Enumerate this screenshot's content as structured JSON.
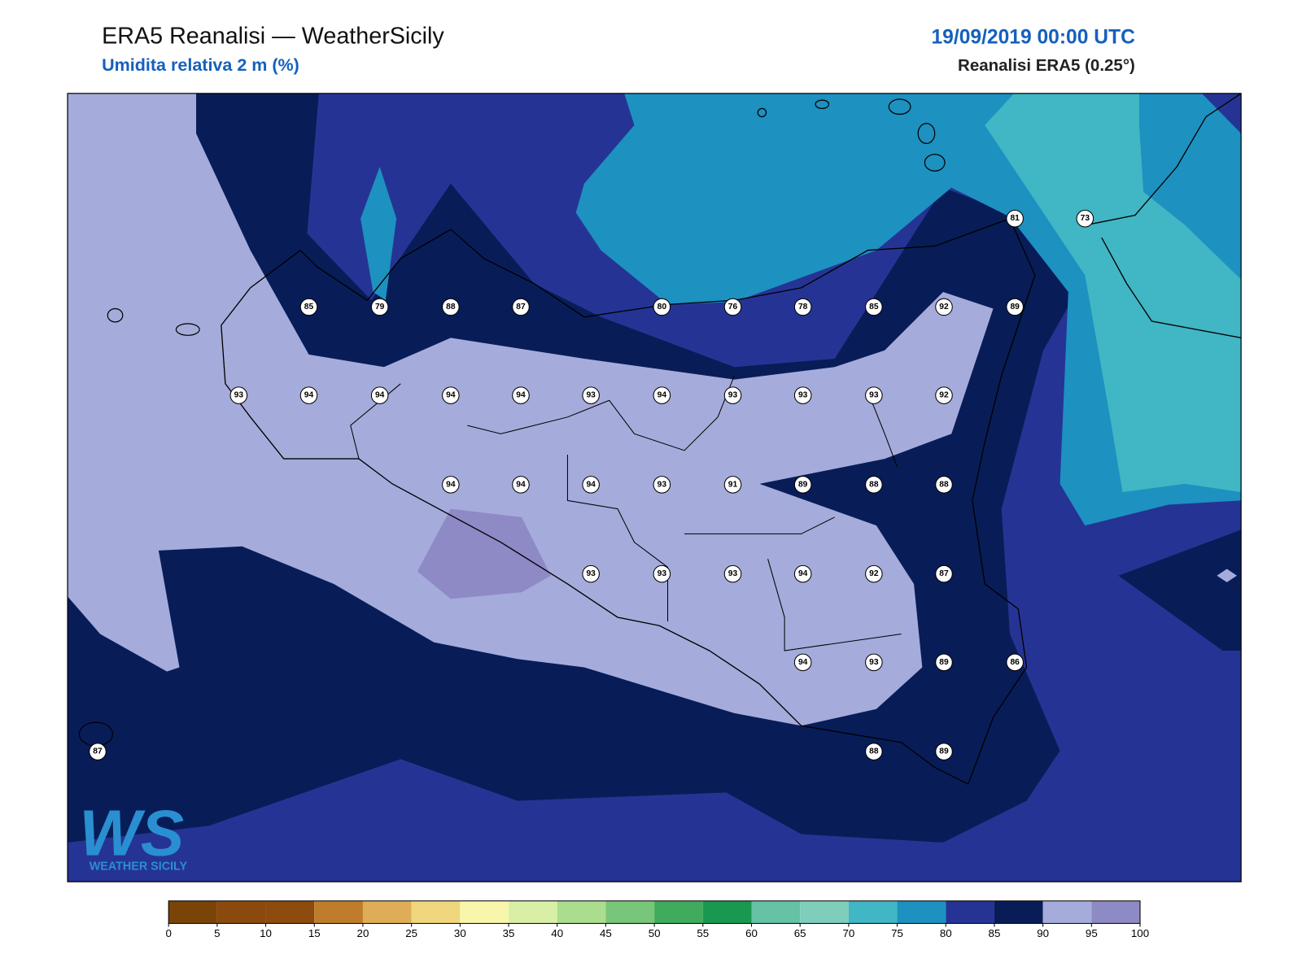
{
  "header": {
    "title": "ERA5 Reanalisi — WeatherSicily",
    "subtitle": "Umidita relativa 2 m (%)",
    "datetime": "19/09/2019 00:00 UTC",
    "source": "Reanalisi ERA5 (0.25°)"
  },
  "stations": [
    85,
    79,
    88,
    87,
    80,
    76,
    78,
    85,
    92,
    89,
    81,
    73,
    93,
    94,
    94,
    94,
    94,
    93,
    94,
    93,
    93,
    93,
    92,
    94,
    94,
    94,
    93,
    91,
    89,
    88,
    88,
    93,
    93,
    93,
    94,
    92,
    87,
    94,
    93,
    89,
    86,
    87,
    88,
    89
  ],
  "colorbar": {
    "ticks": [
      0,
      5,
      10,
      15,
      20,
      25,
      30,
      35,
      40,
      45,
      50,
      55,
      60,
      65,
      70,
      75,
      80,
      85,
      90,
      95,
      100
    ],
    "colors": [
      "#7a4408",
      "#8b4a0d",
      "#8e4b0e",
      "#bf7d2c",
      "#dfad58",
      "#f0d67d",
      "#f8f6ab",
      "#d9efa6",
      "#aadd8d",
      "#78c679",
      "#41ab5d",
      "#1a9850",
      "#66c2a4",
      "#7fcdbb",
      "#41b6c4",
      "#1d91c0",
      "#253494",
      "#081d58",
      "#a5acdb",
      "#8e8ac6"
    ]
  },
  "logo": {
    "mark": "WS",
    "name": "WEATHER SICILY"
  }
}
